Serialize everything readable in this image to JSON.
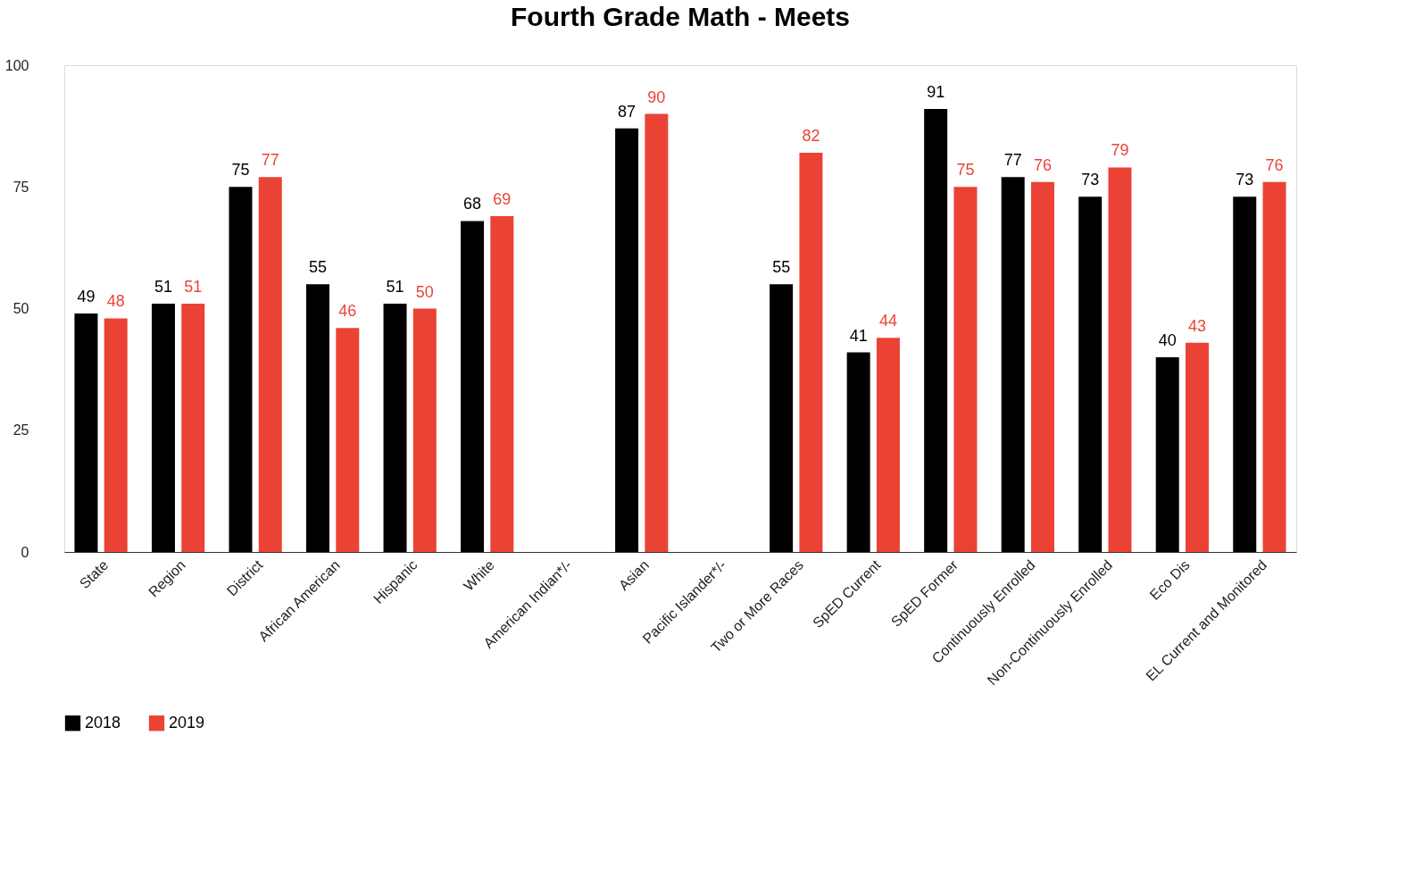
{
  "chart_data": {
    "type": "bar",
    "title": "Fourth Grade Math - Meets",
    "categories": [
      "State",
      "Region",
      "District",
      "African American",
      "Hispanic",
      "White",
      "American Indian*/-",
      "Asian",
      "Pacific Islander*/-",
      "Two or More Races",
      "SpED Current",
      "SpED Former",
      "Continuously Enrolled",
      "Non-Continuously Enrolled",
      "Eco Dis",
      "EL Current and Monitored"
    ],
    "series": [
      {
        "name": "2018",
        "color": "#000000",
        "values": [
          49,
          51,
          75,
          55,
          51,
          68,
          null,
          87,
          null,
          55,
          41,
          91,
          77,
          73,
          40,
          73
        ]
      },
      {
        "name": "2019",
        "color": "#ea4335",
        "values": [
          48,
          51,
          77,
          46,
          50,
          69,
          null,
          90,
          null,
          82,
          44,
          75,
          76,
          79,
          43,
          76
        ]
      }
    ],
    "ylim": [
      0,
      100
    ],
    "yticks": [
      0,
      25,
      50,
      75,
      100
    ],
    "grid": false,
    "legend": "bottom",
    "data_labels": true
  }
}
